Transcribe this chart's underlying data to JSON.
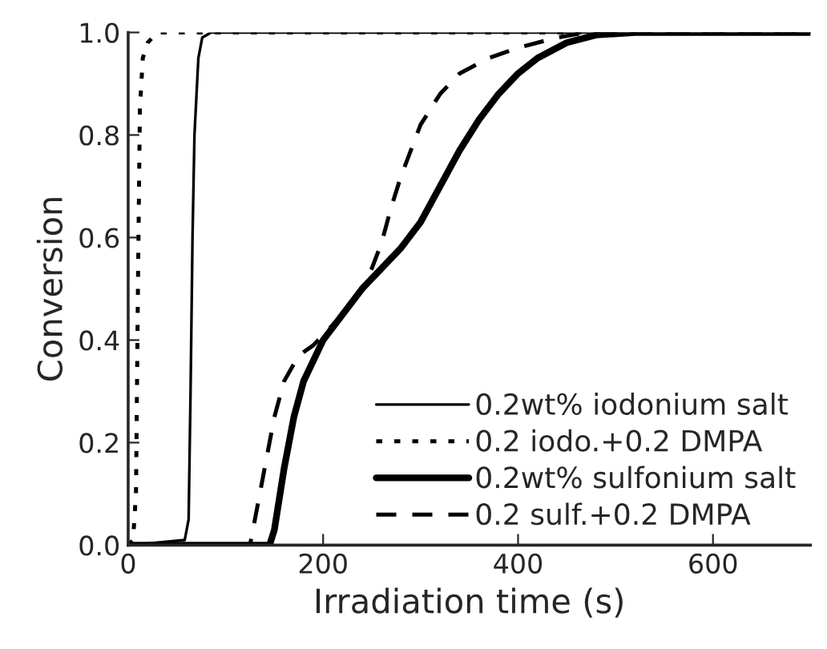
{
  "chart_data": {
    "type": "line",
    "xlabel": "Irradiation time (s)",
    "ylabel": "Conversion",
    "xlim": [
      0,
      700
    ],
    "xticks": [
      0,
      200,
      400,
      600
    ],
    "ylim": [
      0,
      1.0
    ],
    "yticks": [
      {
        "value": 0,
        "label": "0.0"
      },
      {
        "value": 0.2,
        "label": "0.2"
      },
      {
        "value": 0.4,
        "label": "0.4"
      },
      {
        "value": 0.6,
        "label": "0.6"
      },
      {
        "value": 0.8,
        "label": "0.8"
      },
      {
        "value": 1.0,
        "label": "1.0"
      }
    ],
    "grid": false,
    "legend": "bottom right",
    "marker": "none",
    "series": [
      {
        "name": "0.2wt% iodonium salt",
        "color": "#000000",
        "line_style": "solid",
        "x": [
          0,
          30,
          58,
          62,
          64,
          66,
          68,
          72,
          76,
          85,
          700
        ],
        "values": [
          0,
          0.005,
          0.01,
          0.05,
          0.3,
          0.6,
          0.8,
          0.95,
          0.99,
          1,
          1
        ]
      },
      {
        "name": "0.2 iodo.+0.2 DMPA",
        "color": "#000000",
        "line_style": "dotted",
        "x": [
          0,
          5,
          8,
          10,
          12,
          15,
          20,
          30,
          700
        ],
        "values": [
          0,
          0.01,
          0.1,
          0.5,
          0.85,
          0.95,
          0.98,
          1,
          1
        ]
      },
      {
        "name": "0.2wt% sulfonium salt",
        "color": "#000000",
        "line_style": "solid",
        "x": [
          0,
          145,
          150,
          160,
          170,
          180,
          200,
          220,
          240,
          260,
          280,
          300,
          320,
          340,
          360,
          380,
          400,
          420,
          450,
          480,
          520,
          700
        ],
        "values": [
          0,
          0,
          0.03,
          0.15,
          0.25,
          0.32,
          0.4,
          0.45,
          0.5,
          0.54,
          0.58,
          0.63,
          0.7,
          0.77,
          0.83,
          0.88,
          0.92,
          0.95,
          0.98,
          0.995,
          1,
          1
        ]
      },
      {
        "name": "0.2 sulf.+0.2 DMPA",
        "color": "#000000",
        "line_style": "dashed",
        "x": [
          0,
          125,
          130,
          140,
          150,
          160,
          175,
          190,
          200,
          220,
          240,
          250,
          260,
          270,
          280,
          300,
          320,
          340,
          370,
          400,
          440,
          470,
          700
        ],
        "values": [
          0,
          0,
          0.05,
          0.15,
          0.25,
          0.32,
          0.37,
          0.39,
          0.41,
          0.45,
          0.5,
          0.54,
          0.59,
          0.66,
          0.72,
          0.82,
          0.88,
          0.92,
          0.95,
          0.97,
          0.99,
          1,
          1
        ]
      }
    ]
  }
}
